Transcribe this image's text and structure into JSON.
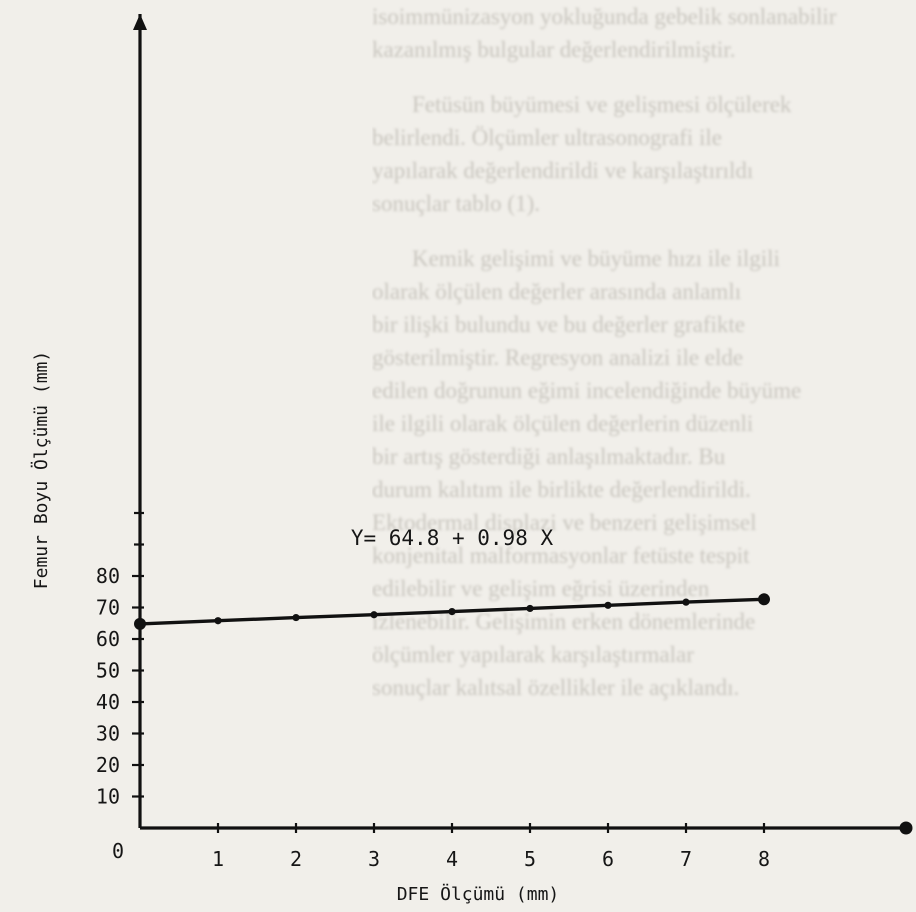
{
  "chart_data": {
    "type": "line",
    "title": "",
    "xlabel": "DFE Ölçümü (mm)",
    "ylabel": "Femur Boyu Ölçümü (mm)",
    "origin_label": "0",
    "xlim": [
      0,
      10
    ],
    "ylim": [
      0,
      100
    ],
    "x_ticks": [
      1,
      2,
      3,
      4,
      5,
      6,
      7,
      8
    ],
    "x_tick_labels": [
      "1",
      "2",
      "3",
      "4",
      "5",
      "6",
      "7",
      "8"
    ],
    "y_ticks": [
      10,
      20,
      30,
      40,
      50,
      60,
      70,
      80
    ],
    "y_tick_labels": [
      "10",
      "20",
      "30",
      "40",
      "50",
      "60",
      "70",
      "80"
    ],
    "equation": "Y= 64.8 + 0.98 X",
    "regression": {
      "intercept": 64.8,
      "slope": 0.98
    },
    "series": [
      {
        "x": [
          0,
          1,
          2,
          3,
          4,
          5,
          6,
          7,
          8
        ],
        "y": [
          64.8,
          65.8,
          66.8,
          67.7,
          68.7,
          69.7,
          70.7,
          71.7,
          72.6
        ]
      }
    ],
    "grid": false,
    "legend": "none"
  }
}
